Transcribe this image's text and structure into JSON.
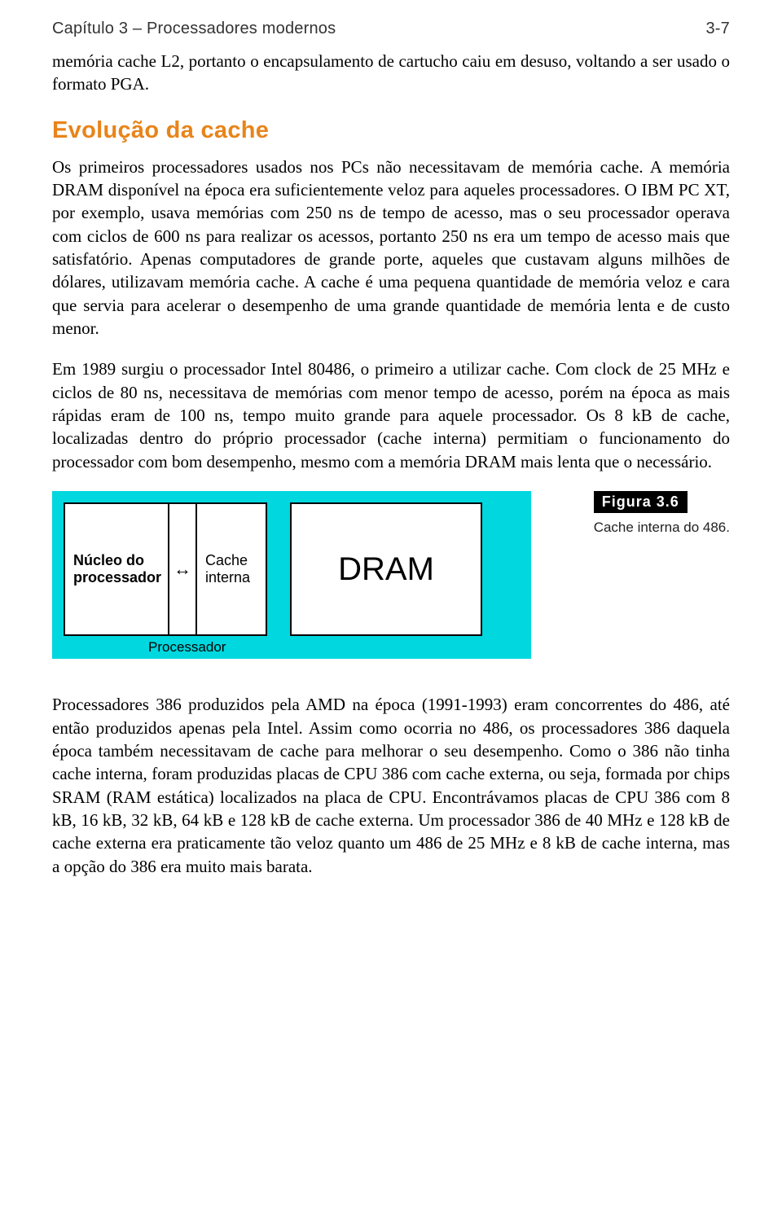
{
  "header": {
    "chapter": "Capítulo 3 – Processadores modernos",
    "page": "3-7"
  },
  "intro": "memória cache L2, portanto o encapsulamento de cartucho caiu em desuso, voltando a ser usado o formato PGA.",
  "section_heading": "Evolução da cache",
  "para1": "Os primeiros processadores usados nos PCs não necessitavam de memória cache. A memória DRAM disponível na época era suficientemente veloz para aqueles processadores. O IBM PC XT, por exemplo, usava memórias com 250 ns de tempo de acesso, mas o seu processador operava com ciclos de 600 ns para realizar os acessos, portanto 250 ns era um tempo de acesso mais que satisfatório. Apenas computadores de grande porte, aqueles que custavam alguns milhões de dólares, utilizavam memória cache. A cache é uma pequena quantidade de memória veloz e cara que servia para acelerar o desempenho de uma grande quantidade de memória lenta e de custo menor.",
  "para2": "Em 1989 surgiu o processador Intel 80486, o primeiro a utilizar cache. Com clock de 25 MHz e ciclos de 80 ns, necessitava de memórias com menor tempo de acesso, porém na época as mais rápidas eram de 100 ns, tempo muito grande para aquele processador. Os 8 kB de cache, localizadas dentro do próprio processador (cache interna) permitiam o funcionamento do processador com bom desempenho, mesmo com a memória DRAM mais lenta que o necessário.",
  "figure": {
    "label": "Figura 3.6",
    "caption": "Cache interna do 486.",
    "diagram": {
      "background_color": "#00d7de",
      "nucleo_line1": "Núcleo do",
      "nucleo_line2": "processador",
      "arrow_glyph": "↔",
      "cache_line1": "Cache",
      "cache_line2": "interna",
      "dram_label": "DRAM",
      "processador_label": "Processador"
    }
  },
  "para3": "Processadores 386 produzidos pela AMD na época (1991-1993) eram concorrentes do 486, até então produzidos apenas pela Intel. Assim como ocorria no 486, os processadores 386 daquela época também necessitavam de cache para melhorar o seu desempenho. Como o 386 não tinha cache interna, foram produzidas placas de CPU 386 com cache externa, ou seja, formada por chips SRAM (RAM estática) localizados na placa de CPU. Encontrávamos placas de CPU 386 com 8 kB, 16 kB, 32 kB, 64 kB e 128 kB de cache externa. Um processador 386 de 40 MHz e 128 kB de cache externa era praticamente tão veloz quanto um 486 de 25 MHz e 8 kB de cache interna, mas a opção do 386 era muito mais barata."
}
